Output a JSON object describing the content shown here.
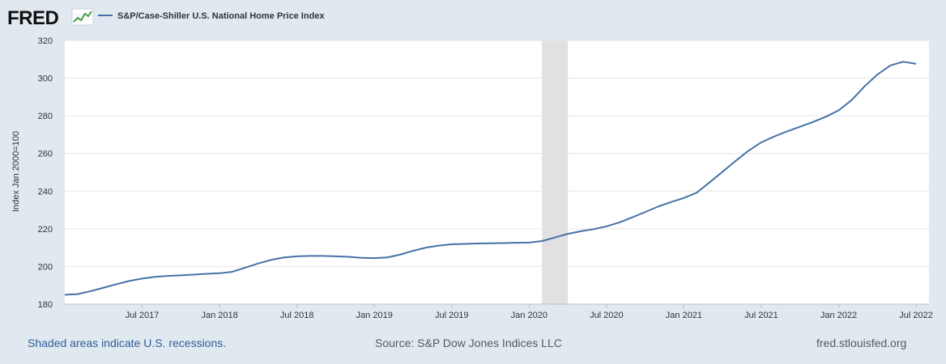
{
  "brand": {
    "logo_text": "FRED",
    "accent": "#4572a7"
  },
  "chart_data": {
    "type": "line",
    "title": "S&P/Case-Shiller U.S. National Home Price Index",
    "ylabel": "Index Jan 2000=100",
    "xlabel": "",
    "ylim": [
      180,
      320
    ],
    "yticks": [
      180,
      200,
      220,
      240,
      260,
      280,
      300,
      320
    ],
    "xticks": [
      {
        "label": "Jul 2017",
        "month": 6
      },
      {
        "label": "Jan 2018",
        "month": 12
      },
      {
        "label": "Jul 2018",
        "month": 18
      },
      {
        "label": "Jan 2019",
        "month": 24
      },
      {
        "label": "Jul 2019",
        "month": 30
      },
      {
        "label": "Jan 2020",
        "month": 36
      },
      {
        "label": "Jul 2020",
        "month": 42
      },
      {
        "label": "Jan 2021",
        "month": 48
      },
      {
        "label": "Jul 2021",
        "month": 54
      },
      {
        "label": "Jan 2022",
        "month": 60
      },
      {
        "label": "Jul 2022",
        "month": 66
      }
    ],
    "x_start": "Jan 2017",
    "x_end": "Aug 2022",
    "x_range_months": [
      0,
      67
    ],
    "grid": true,
    "recessions": [
      {
        "start_month": 37,
        "end_month": 39
      }
    ],
    "series": [
      {
        "name": "S&P/Case-Shiller U.S. National Home Price Index",
        "color": "#4572a7",
        "values": [
          185.0,
          185.3,
          186.9,
          188.7,
          190.6,
          192.3,
          193.6,
          194.5,
          195.0,
          195.3,
          195.7,
          196.1,
          196.4,
          197.2,
          199.4,
          201.6,
          203.5,
          204.8,
          205.4,
          205.6,
          205.6,
          205.4,
          205.1,
          204.6,
          204.4,
          204.8,
          206.3,
          208.3,
          210.0,
          211.1,
          211.8,
          212.0,
          212.2,
          212.3,
          212.4,
          212.6,
          212.7,
          213.5,
          215.4,
          217.3,
          218.7,
          219.8,
          221.3,
          223.4,
          226.1,
          228.9,
          231.8,
          234.2,
          236.4,
          239.2,
          244.7,
          250.3,
          256.0,
          261.4,
          265.9,
          269.0,
          271.7,
          274.2,
          276.7,
          279.5,
          282.9,
          288.3,
          295.6,
          301.9,
          306.7,
          308.7,
          307.6
        ]
      }
    ],
    "source": "Source: S&P Dow Jones Indices LLC"
  },
  "footer": {
    "recession_note": "Shaded areas indicate U.S. recessions.",
    "source": "Source: S&P Dow Jones Indices LLC",
    "site": "fred.stlouisfed.org"
  }
}
